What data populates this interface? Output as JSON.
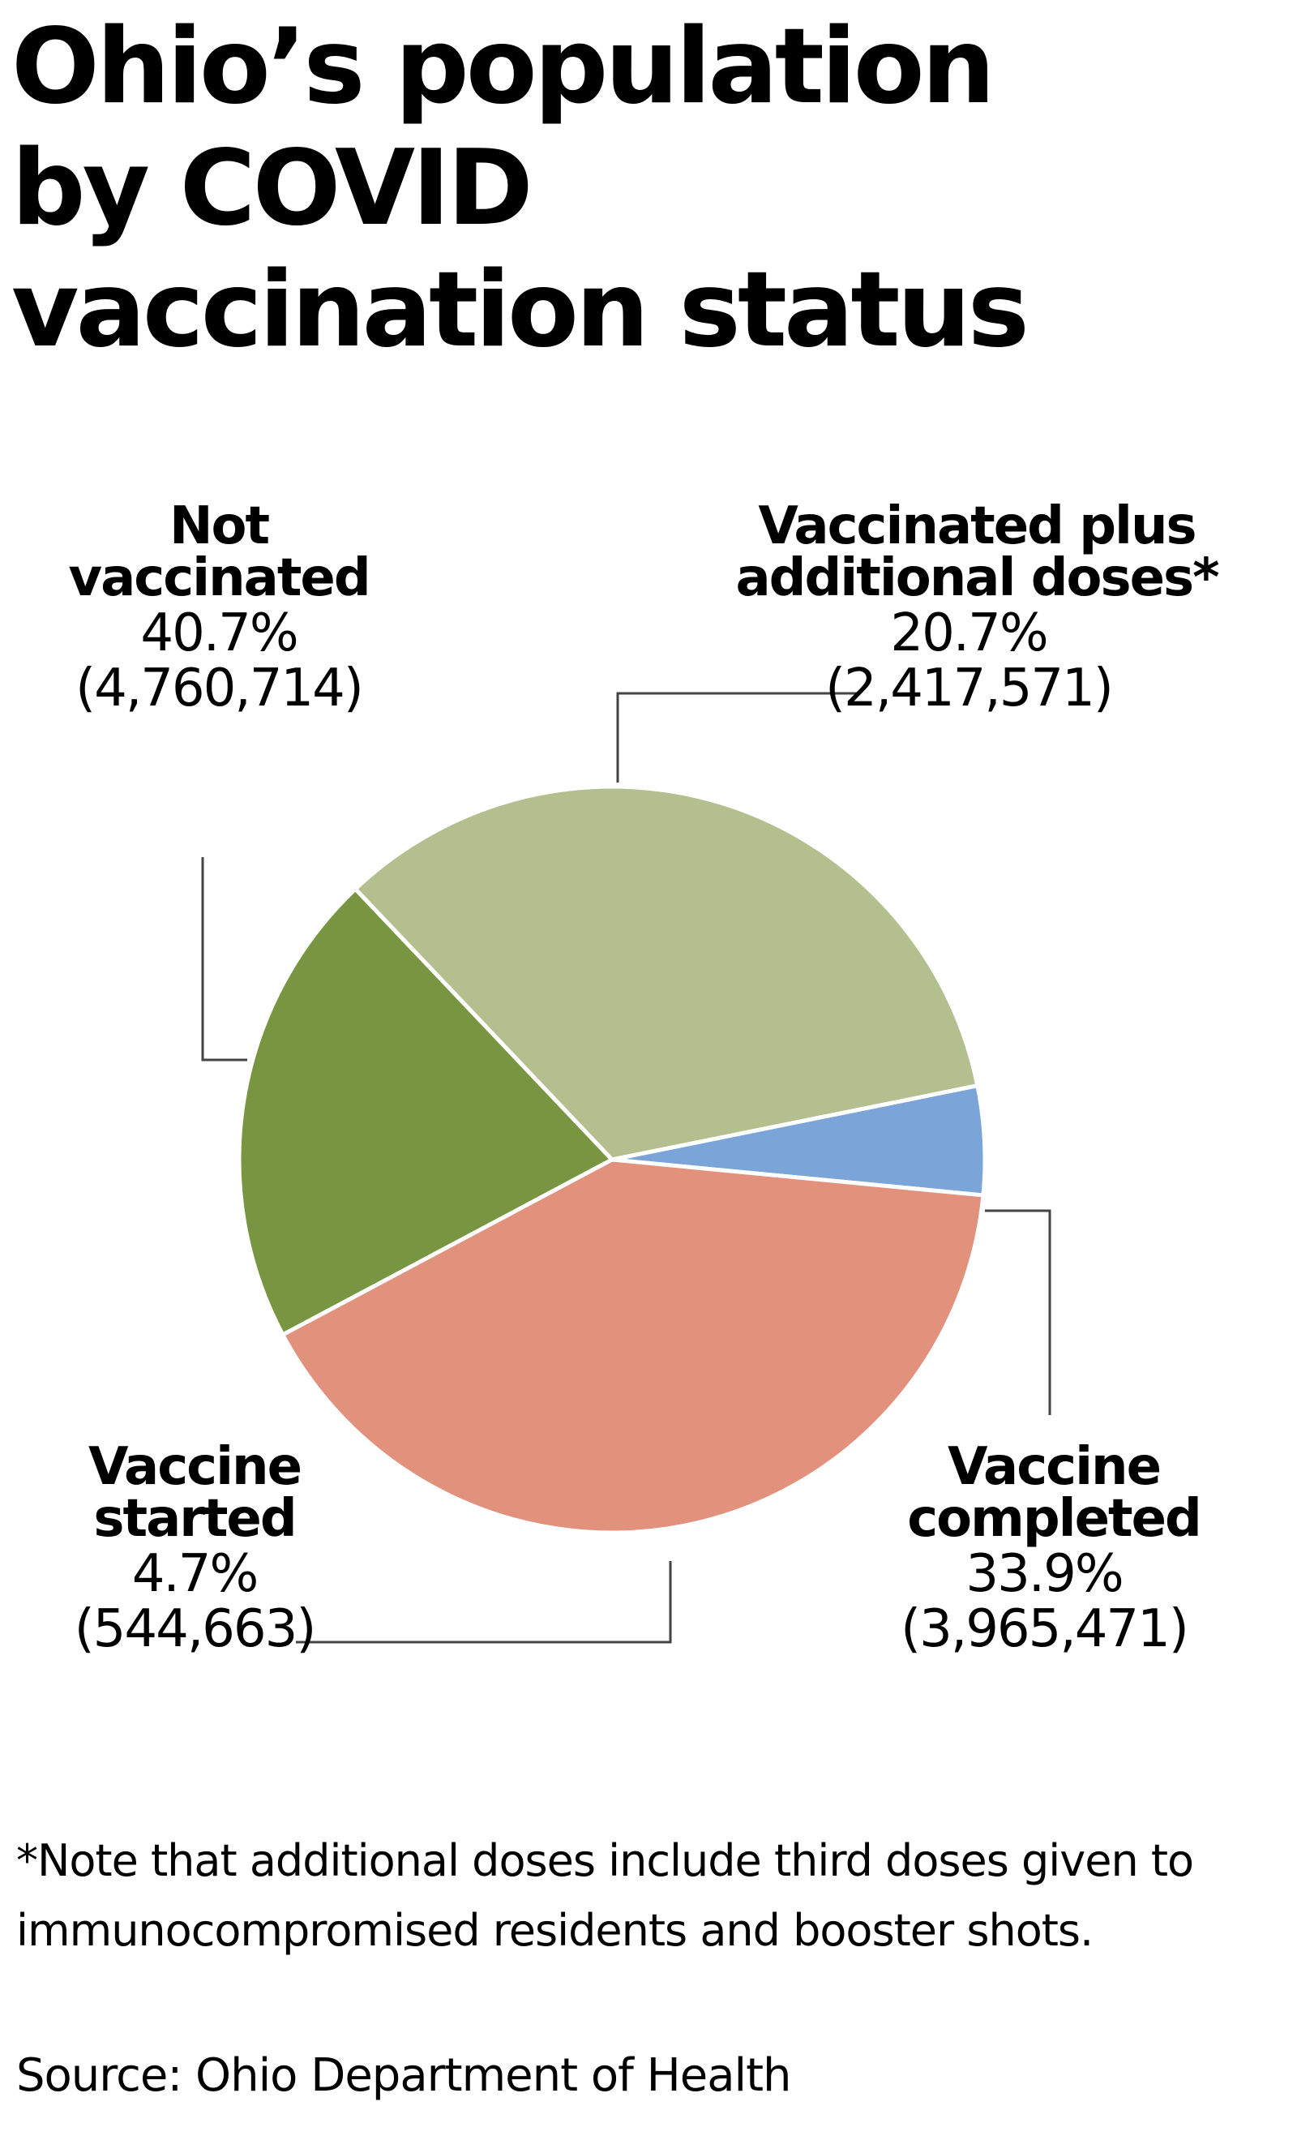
{
  "chart_data": {
    "type": "pie",
    "title": "Ohio’s population by COVID vaccination status",
    "slices": [
      {
        "name": "Not vaccinated",
        "percent_label": "40.7%",
        "count_label": "(4,760,714)",
        "value": 40.7,
        "color": "#e2917d"
      },
      {
        "name": "Vaccinated plus additional doses*",
        "percent_label": "20.7%",
        "count_label": "(2,417,571)",
        "value": 20.7,
        "color": "#789641"
      },
      {
        "name": "Vaccine completed",
        "percent_label": "33.9%",
        "count_label": "(3,965,471)",
        "value": 33.9,
        "color": "#b3bf8e"
      },
      {
        "name": "Vaccine started",
        "percent_label": "4.7%",
        "count_label": "(544,663)",
        "value": 4.7,
        "color": "#7ba4d9"
      }
    ]
  },
  "footnote": "*Note that additional doses include third doses given to immunocompromised residents and booster shots.",
  "source": "Source: Ohio Department of Health",
  "colors": {
    "background": "#ffffff",
    "text": "#000000",
    "leader_line": "#444444",
    "slice_border": "#ffffff"
  }
}
